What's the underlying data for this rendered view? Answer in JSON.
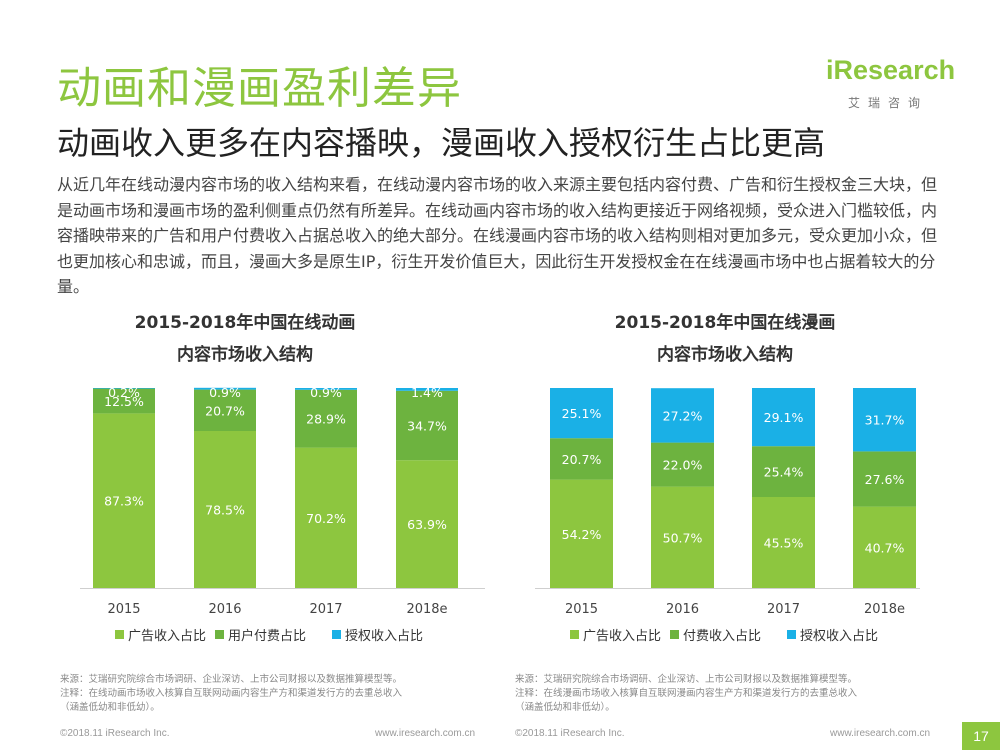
{
  "page": {
    "title": "动画和漫画盈利差异",
    "subtitle": "动画收入更多在内容播映，漫画收入授权衍生占比更高",
    "paragraph": "从近几年在线动漫内容市场的收入结构来看，在线动漫内容市场的收入来源主要包括内容付费、广告和衍生授权金三大块，但是动画市场和漫画市场的盈利侧重点仍然有所差异。在线动画内容市场的收入结构更接近于网络视频，受众进入门槛较低，内容播映带来的广告和用户付费收入占据总收入的绝大部分。在线漫画内容市场的收入结构则相对更加多元，受众更加小众，但也更加核心和忠诚，而且，漫画大多是原生IP，衍生开发价值巨大，因此衍生开发授权金在在线漫画市场中也占据着较大的分量。",
    "page_number": "17"
  },
  "logo": {
    "word": "iResearch",
    "sub": "艾瑞咨询"
  },
  "colors": {
    "accent": "#8dc63f",
    "series1": "#8dc63f",
    "series2": "#6db33f",
    "series3": "#1ab0e6"
  },
  "chart_data": [
    {
      "type": "bar",
      "stacked": true,
      "title_line1": "2015-2018年中国在线动画",
      "title_line2": "内容市场收入结构",
      "categories": [
        "2015",
        "2016",
        "2017",
        "2018e"
      ],
      "series": [
        {
          "name": "广告收入占比",
          "values": [
            87.3,
            78.5,
            70.2,
            63.9
          ],
          "labels": [
            "87.3%",
            "78.5%",
            "70.2%",
            "63.9%"
          ]
        },
        {
          "name": "用户付费占比",
          "values": [
            12.5,
            20.7,
            28.9,
            34.7
          ],
          "labels": [
            "12.5%",
            "20.7%",
            "28.9%",
            "34.7%"
          ]
        },
        {
          "name": "授权收入占比",
          "values": [
            0.2,
            0.9,
            0.9,
            1.4
          ],
          "labels": [
            "0.2%",
            "0.9%",
            "0.9%",
            "1.4%"
          ]
        }
      ],
      "ylim": [
        0,
        100
      ],
      "legend": "bottom",
      "grid": false
    },
    {
      "type": "bar",
      "stacked": true,
      "title_line1": "2015-2018年中国在线漫画",
      "title_line2": "内容市场收入结构",
      "categories": [
        "2015",
        "2016",
        "2017",
        "2018e"
      ],
      "series": [
        {
          "name": "广告收入占比",
          "values": [
            54.2,
            50.7,
            45.5,
            40.7
          ],
          "labels": [
            "54.2%",
            "50.7%",
            "45.5%",
            "40.7%"
          ]
        },
        {
          "name": "付费收入占比",
          "values": [
            20.7,
            22.0,
            25.4,
            27.6
          ],
          "labels": [
            "20.7%",
            "22.0%",
            "25.4%",
            "27.6%"
          ]
        },
        {
          "name": "授权收入占比",
          "values": [
            25.1,
            27.2,
            29.1,
            31.7
          ],
          "labels": [
            "25.1%",
            "27.2%",
            "29.1%",
            "31.7%"
          ]
        }
      ],
      "ylim": [
        0,
        100
      ],
      "legend": "bottom",
      "grid": false
    }
  ],
  "sources": {
    "left_line1": "来源：艾瑞研究院综合市场调研、企业深访、上市公司财报以及数据推算模型等。",
    "left_line2": "注释：在线动画市场收入核算自互联网动画内容生产方和渠道发行方的去重总收入",
    "left_line3": "（涵盖低幼和非低幼）。",
    "right_line1": "来源：艾瑞研究院综合市场调研、企业深访、上市公司财报以及数据推算模型等。",
    "right_line2": "注释：在线漫画市场收入核算自互联网漫画内容生产方和渠道发行方的去重总收入",
    "right_line3": "（涵盖低幼和非低幼）。"
  },
  "footer": {
    "left_copyright": "©2018.11 iResearch Inc.",
    "left_url": "www.iresearch.com.cn",
    "right_copyright": "©2018.11 iResearch Inc.",
    "right_url": "www.iresearch.com.cn"
  }
}
